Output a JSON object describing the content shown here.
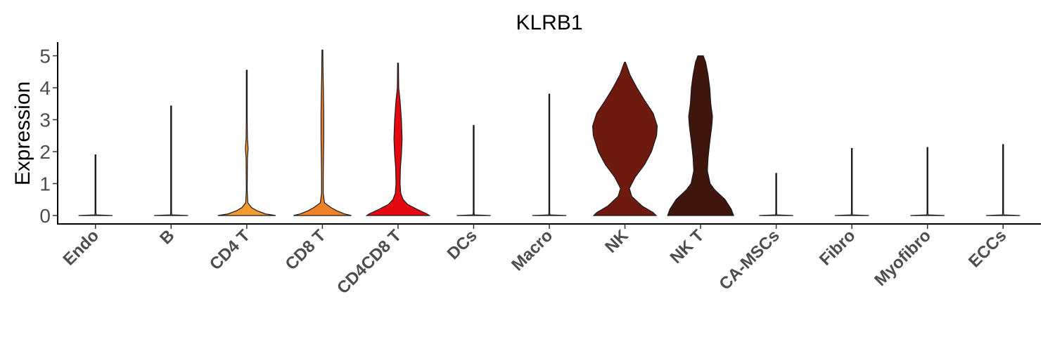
{
  "chart_data": {
    "type": "violin",
    "title": "KLRB1",
    "xlabel": "",
    "ylabel": "Expression",
    "ylim": [
      -0.25,
      5.45
    ],
    "yticks": [
      0,
      1,
      2,
      3,
      4,
      5
    ],
    "grid": false,
    "legend": "none",
    "categories": [
      "Endo",
      "B",
      "CD4 T",
      "CD8 T",
      "CD4CD8 T",
      "DCs",
      "Macro",
      "NK",
      "NK T",
      "CA-MSCs",
      "Fibro",
      "Myofibro",
      "ECCs"
    ],
    "max_expression": [
      1.9,
      3.43,
      4.55,
      5.18,
      4.77,
      2.82,
      3.8,
      4.8,
      5.0,
      1.32,
      2.1,
      2.13,
      2.22
    ],
    "colors": [
      "#9a9a9a",
      "#8c8c8c",
      "#f39b31",
      "#ef8126",
      "#e3080f",
      "#555555",
      "#666666",
      "#6e1a0e",
      "#3f160d",
      "#777777",
      "#888888",
      "#999999",
      "#aaaaaa"
    ],
    "density_profiles": [
      [
        [
          0,
          0.5
        ],
        [
          0.02,
          0.02
        ],
        [
          0.1,
          0.01
        ],
        [
          1.9,
          0.005
        ]
      ],
      [
        [
          0,
          0.5
        ],
        [
          0.02,
          0.02
        ],
        [
          0.1,
          0.01
        ],
        [
          3.43,
          0.005
        ]
      ],
      [
        [
          0,
          0.85
        ],
        [
          0.05,
          0.55
        ],
        [
          0.15,
          0.3
        ],
        [
          0.25,
          0.14
        ],
        [
          0.4,
          0.03
        ],
        [
          0.8,
          0.01
        ],
        [
          1.8,
          0.02
        ],
        [
          2.1,
          0.04
        ],
        [
          2.4,
          0.02
        ],
        [
          3.0,
          0.01
        ],
        [
          4.55,
          0.005
        ]
      ],
      [
        [
          0,
          0.85
        ],
        [
          0.05,
          0.65
        ],
        [
          0.15,
          0.42
        ],
        [
          0.25,
          0.25
        ],
        [
          0.4,
          0.06
        ],
        [
          0.7,
          0.025
        ],
        [
          1.2,
          0.025
        ],
        [
          1.7,
          0.03
        ],
        [
          2.4,
          0.04
        ],
        [
          3.2,
          0.04
        ],
        [
          3.9,
          0.03
        ],
        [
          4.4,
          0.02
        ],
        [
          5.18,
          0.005
        ]
      ],
      [
        [
          0,
          0.92
        ],
        [
          0.05,
          0.85
        ],
        [
          0.2,
          0.55
        ],
        [
          0.35,
          0.28
        ],
        [
          0.5,
          0.15
        ],
        [
          0.7,
          0.08
        ],
        [
          1.0,
          0.06
        ],
        [
          1.5,
          0.07
        ],
        [
          1.9,
          0.1
        ],
        [
          2.4,
          0.12
        ],
        [
          3.0,
          0.1
        ],
        [
          3.6,
          0.06
        ],
        [
          4.0,
          0.02
        ],
        [
          4.77,
          0.005
        ]
      ],
      [
        [
          0,
          0.5
        ],
        [
          0.02,
          0.02
        ],
        [
          0.1,
          0.01
        ],
        [
          2.82,
          0.005
        ]
      ],
      [
        [
          0,
          0.5
        ],
        [
          0.02,
          0.02
        ],
        [
          0.1,
          0.01
        ],
        [
          3.8,
          0.005
        ]
      ],
      [
        [
          0,
          0.92
        ],
        [
          0.1,
          0.82
        ],
        [
          0.3,
          0.5
        ],
        [
          0.6,
          0.2
        ],
        [
          0.85,
          0.13
        ],
        [
          1.2,
          0.3
        ],
        [
          1.6,
          0.58
        ],
        [
          2.0,
          0.78
        ],
        [
          2.5,
          0.93
        ],
        [
          2.8,
          0.95
        ],
        [
          3.2,
          0.83
        ],
        [
          3.6,
          0.58
        ],
        [
          4.0,
          0.35
        ],
        [
          4.4,
          0.15
        ],
        [
          4.7,
          0.05
        ],
        [
          4.8,
          0.0
        ]
      ],
      [
        [
          0,
          0.97
        ],
        [
          0.2,
          0.9
        ],
        [
          0.5,
          0.72
        ],
        [
          0.8,
          0.42
        ],
        [
          1.0,
          0.28
        ],
        [
          1.4,
          0.2
        ],
        [
          1.8,
          0.22
        ],
        [
          2.3,
          0.27
        ],
        [
          2.8,
          0.33
        ],
        [
          3.1,
          0.35
        ],
        [
          3.5,
          0.3
        ],
        [
          4.0,
          0.27
        ],
        [
          4.4,
          0.22
        ],
        [
          4.8,
          0.15
        ],
        [
          5.0,
          0.08
        ]
      ],
      [
        [
          0,
          0.5
        ],
        [
          0.02,
          0.02
        ],
        [
          0.1,
          0.01
        ],
        [
          1.32,
          0.005
        ]
      ],
      [
        [
          0,
          0.5
        ],
        [
          0.02,
          0.02
        ],
        [
          0.1,
          0.01
        ],
        [
          2.1,
          0.005
        ]
      ],
      [
        [
          0,
          0.5
        ],
        [
          0.02,
          0.02
        ],
        [
          0.1,
          0.01
        ],
        [
          2.13,
          0.005
        ]
      ],
      [
        [
          0,
          0.5
        ],
        [
          0.02,
          0.02
        ],
        [
          0.1,
          0.01
        ],
        [
          2.22,
          0.005
        ]
      ]
    ]
  }
}
